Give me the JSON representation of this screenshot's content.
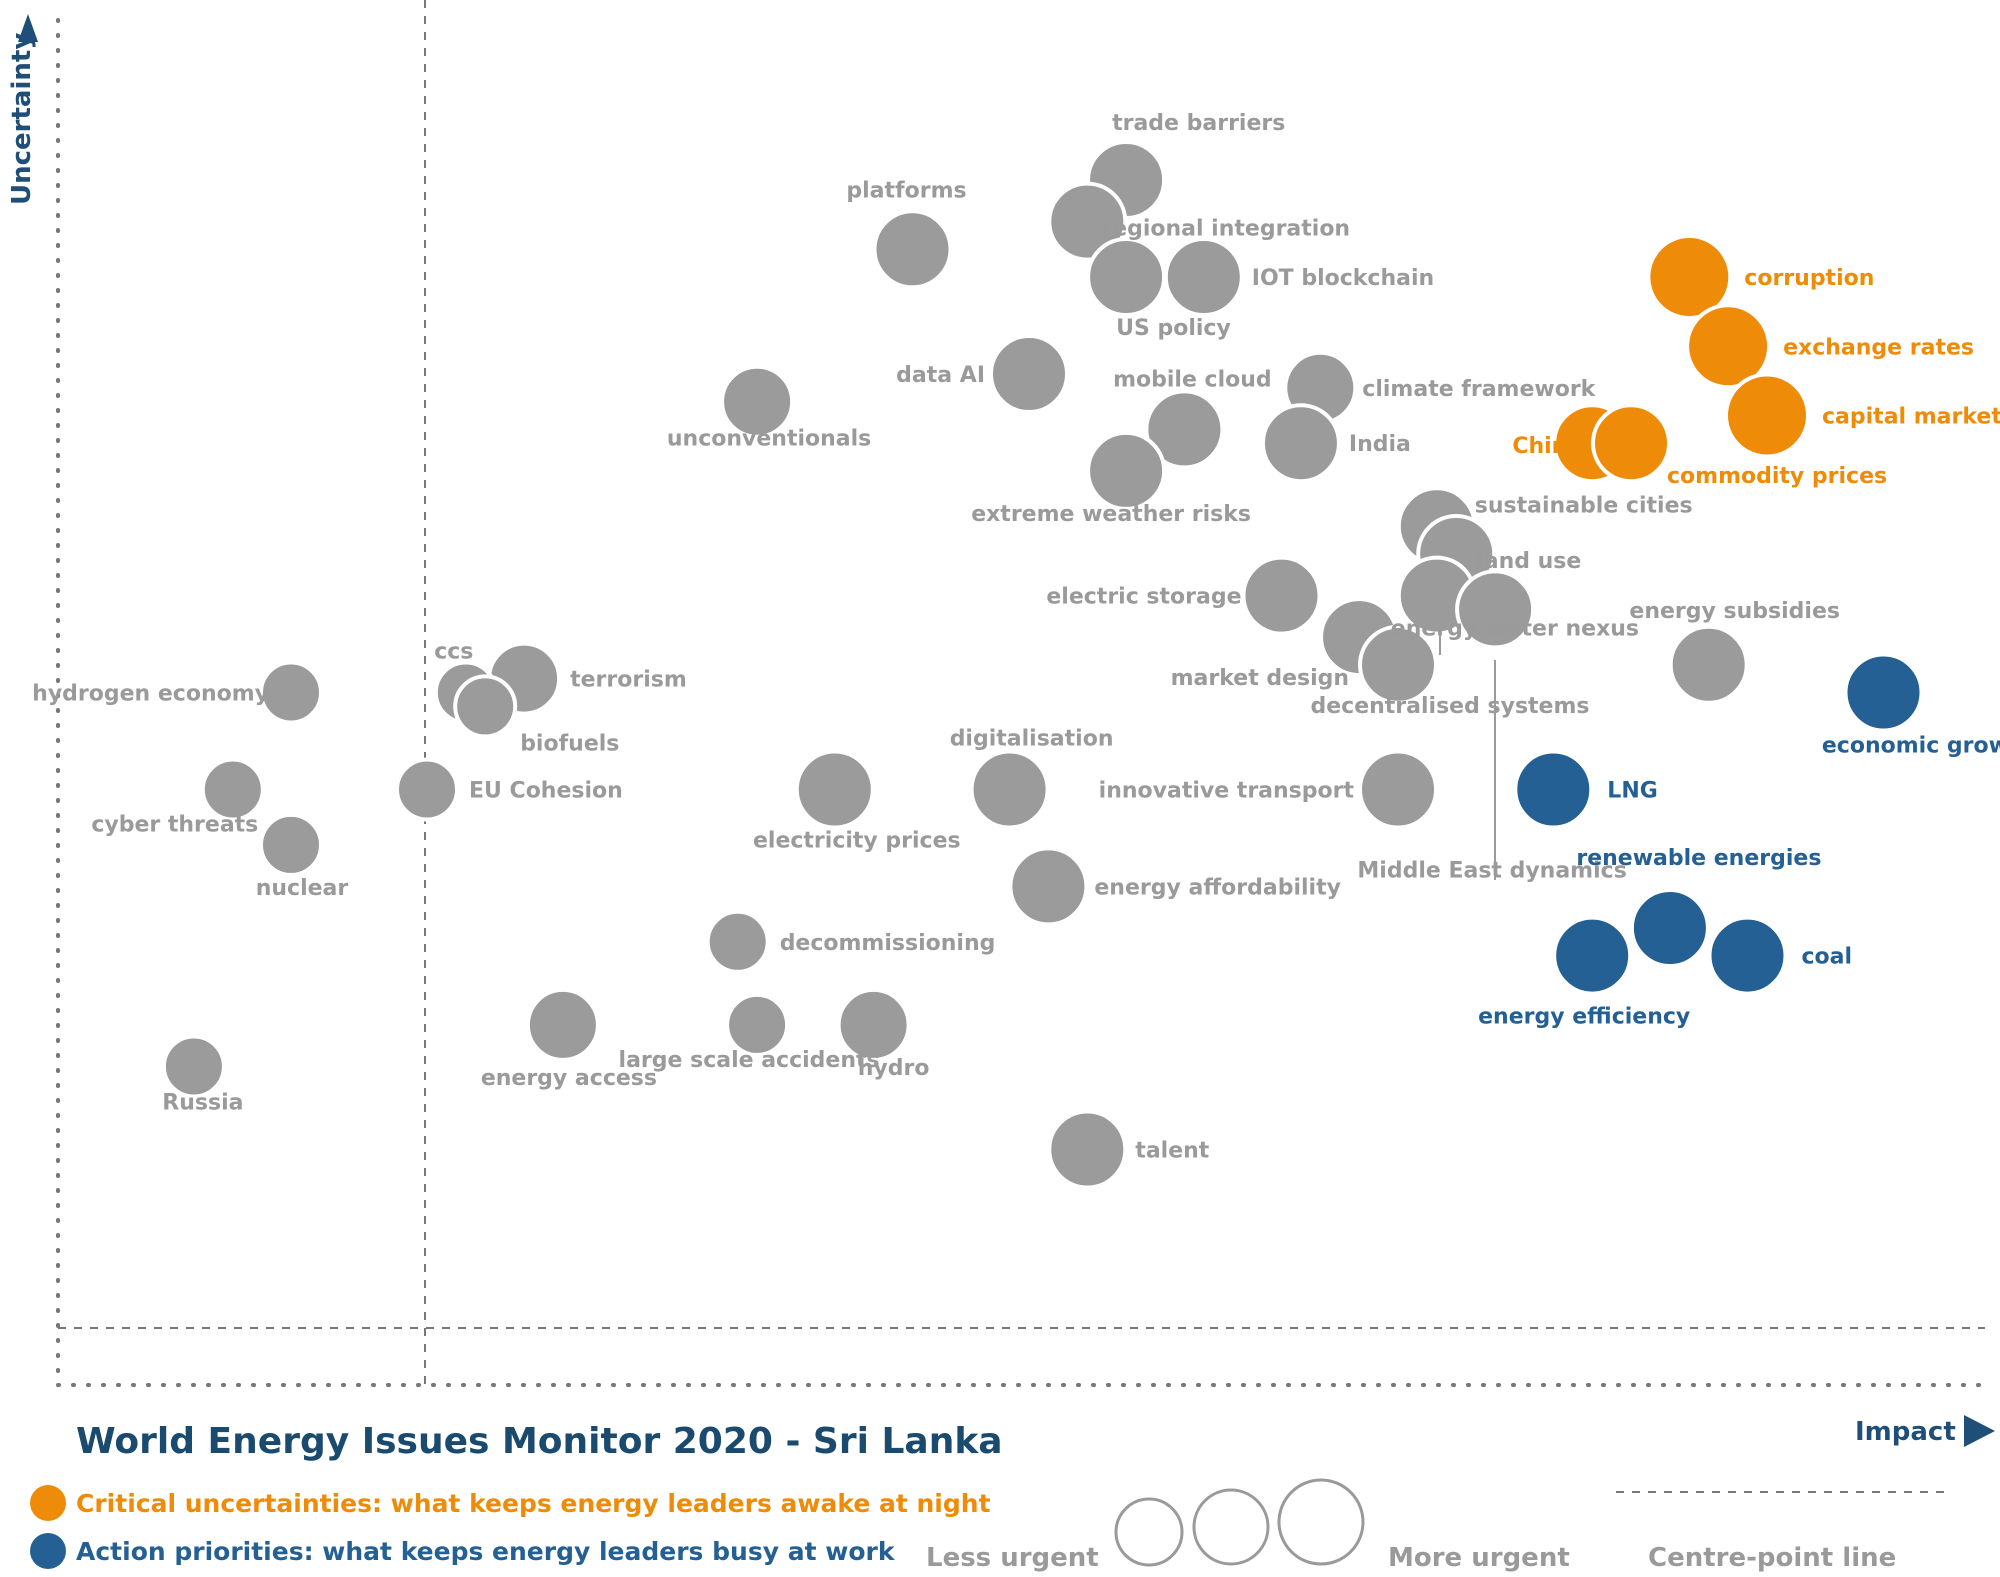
{
  "colors": {
    "uncertainty": "#ee8c0a",
    "priority": "#246093",
    "other": "#9b9b9b",
    "label_gray": "#9a9a9a",
    "axis": "#1f4e79"
  },
  "title": "World Energy Issues Monitor 2020 - Sri Lanka",
  "axes": {
    "y_label": "Uncertainty",
    "x_label": "Impact"
  },
  "legend": {
    "critical": "Critical uncertainties: what keeps energy leaders awake at night",
    "action": "Action priorities: what keeps energy leaders busy at work",
    "less_urgent": "Less urgent",
    "more_urgent": "More urgent",
    "centre_line": "Centre-point  line"
  },
  "chart_data": {
    "type": "scatter",
    "xlabel": "Impact",
    "ylabel": "Uncertainty",
    "xlim": [
      0,
      1
    ],
    "ylim": [
      0,
      1
    ],
    "centre_point": {
      "x": 0.19,
      "y": 0.06
    },
    "categories": [
      "critical uncertainty",
      "action priority",
      "other issue"
    ],
    "points": [
      {
        "label": "trade barriers",
        "x": 0.55,
        "y": 0.87,
        "size": 3,
        "cat": "other"
      },
      {
        "label": "platforms",
        "x": 0.44,
        "y": 0.82,
        "size": 3,
        "cat": "other"
      },
      {
        "label": "regional integration",
        "x": 0.53,
        "y": 0.84,
        "size": 3,
        "cat": "other"
      },
      {
        "label": "US policy",
        "x": 0.55,
        "y": 0.8,
        "size": 3,
        "cat": "other"
      },
      {
        "label": "IOT blockchain",
        "x": 0.59,
        "y": 0.8,
        "size": 3,
        "cat": "other"
      },
      {
        "label": "corruption",
        "x": 0.84,
        "y": 0.8,
        "size": 4,
        "cat": "critical"
      },
      {
        "label": "exchange rates",
        "x": 0.86,
        "y": 0.75,
        "size": 4,
        "cat": "critical"
      },
      {
        "label": "capital markets",
        "x": 0.88,
        "y": 0.7,
        "size": 4,
        "cat": "critical"
      },
      {
        "label": "China",
        "x": 0.79,
        "y": 0.68,
        "size": 3,
        "cat": "critical"
      },
      {
        "label": "commodity prices",
        "x": 0.81,
        "y": 0.68,
        "size": 3,
        "cat": "critical"
      },
      {
        "label": "data AI",
        "x": 0.5,
        "y": 0.73,
        "size": 3,
        "cat": "other"
      },
      {
        "label": "unconventionals",
        "x": 0.36,
        "y": 0.71,
        "size": 2,
        "cat": "other"
      },
      {
        "label": "mobile cloud",
        "x": 0.58,
        "y": 0.69,
        "size": 3,
        "cat": "other"
      },
      {
        "label": "climate framework",
        "x": 0.65,
        "y": 0.72,
        "size": 2,
        "cat": "other"
      },
      {
        "label": "India",
        "x": 0.64,
        "y": 0.68,
        "size": 3,
        "cat": "other"
      },
      {
        "label": "extreme weather risks",
        "x": 0.55,
        "y": 0.66,
        "size": 3,
        "cat": "other"
      },
      {
        "label": "sustainable cities",
        "x": 0.71,
        "y": 0.62,
        "size": 3,
        "cat": "other"
      },
      {
        "label": "land use",
        "x": 0.72,
        "y": 0.6,
        "size": 3,
        "cat": "other"
      },
      {
        "label": "electric storage",
        "x": 0.63,
        "y": 0.57,
        "size": 3,
        "cat": "other"
      },
      {
        "label": "energy subsidies",
        "x": 0.85,
        "y": 0.52,
        "size": 3,
        "cat": "other"
      },
      {
        "label": "market design",
        "x": 0.67,
        "y": 0.54,
        "size": 3,
        "cat": "other"
      },
      {
        "label": "energy-water nexus",
        "x": 0.71,
        "y": 0.57,
        "size": 3,
        "cat": "other"
      },
      {
        "label": "decentralised systems",
        "x": 0.69,
        "y": 0.52,
        "size": 3,
        "cat": "other"
      },
      {
        "label": "Middle East dynamics",
        "x": 0.74,
        "y": 0.56,
        "size": 3,
        "cat": "other"
      },
      {
        "label": "economic growth",
        "x": 0.94,
        "y": 0.5,
        "size": 3,
        "cat": "action"
      },
      {
        "label": "terrorism",
        "x": 0.24,
        "y": 0.51,
        "size": 2,
        "cat": "other"
      },
      {
        "label": "hydrogen economy",
        "x": 0.12,
        "y": 0.5,
        "size": 1,
        "cat": "other"
      },
      {
        "label": "ccs",
        "x": 0.21,
        "y": 0.5,
        "size": 1,
        "cat": "other"
      },
      {
        "label": "biofuels",
        "x": 0.22,
        "y": 0.49,
        "size": 1,
        "cat": "other"
      },
      {
        "label": "digitalisation",
        "x": 0.49,
        "y": 0.43,
        "size": 3,
        "cat": "other"
      },
      {
        "label": "innovative transport",
        "x": 0.69,
        "y": 0.43,
        "size": 3,
        "cat": "other"
      },
      {
        "label": "LNG",
        "x": 0.77,
        "y": 0.43,
        "size": 3,
        "cat": "action"
      },
      {
        "label": "electricity prices",
        "x": 0.4,
        "y": 0.43,
        "size": 3,
        "cat": "other"
      },
      {
        "label": "EU Cohesion",
        "x": 0.19,
        "y": 0.43,
        "size": 1,
        "cat": "other"
      },
      {
        "label": "cyber threats",
        "x": 0.09,
        "y": 0.43,
        "size": 1,
        "cat": "other"
      },
      {
        "label": "nuclear",
        "x": 0.12,
        "y": 0.39,
        "size": 1,
        "cat": "other"
      },
      {
        "label": "energy affordability",
        "x": 0.51,
        "y": 0.36,
        "size": 3,
        "cat": "other"
      },
      {
        "label": "renewable energies",
        "x": 0.83,
        "y": 0.33,
        "size": 3,
        "cat": "action"
      },
      {
        "label": "coal",
        "x": 0.87,
        "y": 0.31,
        "size": 3,
        "cat": "action"
      },
      {
        "label": "energy efficiency",
        "x": 0.79,
        "y": 0.31,
        "size": 3,
        "cat": "action"
      },
      {
        "label": "decommissioning",
        "x": 0.35,
        "y": 0.32,
        "size": 1,
        "cat": "other"
      },
      {
        "label": "energy access",
        "x": 0.26,
        "y": 0.26,
        "size": 2,
        "cat": "other"
      },
      {
        "label": "large scale accidents",
        "x": 0.36,
        "y": 0.26,
        "size": 1,
        "cat": "other"
      },
      {
        "label": "hydro",
        "x": 0.42,
        "y": 0.26,
        "size": 2,
        "cat": "other"
      },
      {
        "label": "Russia",
        "x": 0.07,
        "y": 0.23,
        "size": 1,
        "cat": "other"
      },
      {
        "label": "talent",
        "x": 0.53,
        "y": 0.17,
        "size": 3,
        "cat": "other"
      }
    ]
  }
}
